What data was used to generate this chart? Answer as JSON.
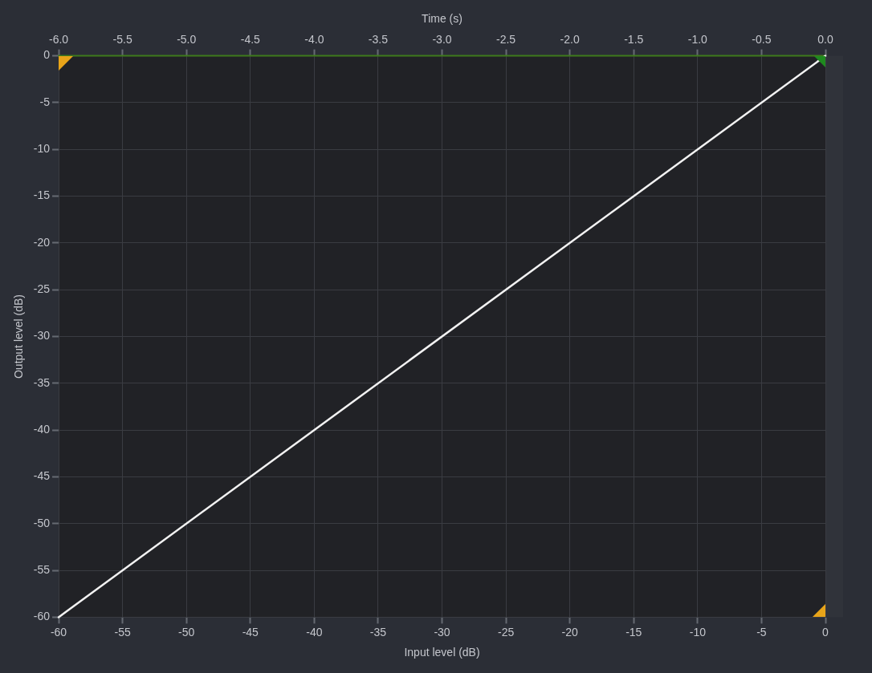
{
  "chart_data": {
    "type": "line",
    "xlabel": "Input level (dB)",
    "ylabel": "Output level (dB)",
    "x2label": "Time (s)",
    "xlim": [
      -60,
      0
    ],
    "xticks": [
      -60,
      -55,
      -50,
      -45,
      -40,
      -35,
      -30,
      -25,
      -20,
      -15,
      -10,
      -5,
      0
    ],
    "x2lim": [
      -6,
      0
    ],
    "x2ticks": [
      {
        "value": -6,
        "label": "-6.0"
      },
      {
        "value": -5.5,
        "label": "-5.5"
      },
      {
        "value": -5,
        "label": "-5.0"
      },
      {
        "value": -4.5,
        "label": "-4.5"
      },
      {
        "value": -4,
        "label": "-4.0"
      },
      {
        "value": -3.5,
        "label": "-3.5"
      },
      {
        "value": -3,
        "label": "-3.0"
      },
      {
        "value": -2.5,
        "label": "-2.5"
      },
      {
        "value": -2,
        "label": "-2.0"
      },
      {
        "value": -1.5,
        "label": "-1.5"
      },
      {
        "value": -1,
        "label": "-1.0"
      },
      {
        "value": -0.5,
        "label": "-0.5"
      },
      {
        "value": 0,
        "label": "0.0"
      }
    ],
    "ylim": [
      -60,
      0
    ],
    "yticks": [
      -60,
      -55,
      -50,
      -45,
      -40,
      -35,
      -30,
      -25,
      -20,
      -15,
      -10,
      -5,
      0
    ],
    "grid": true,
    "legend": false,
    "marker": "none",
    "line_style": "solid",
    "series": [
      {
        "color": "#f2f2f2",
        "x": [
          -60,
          0
        ],
        "values": [
          -60,
          0
        ]
      },
      {
        "color": "#3f7a1c",
        "axis": "x2",
        "x": [
          -6,
          0
        ],
        "values": [
          0,
          0
        ]
      }
    ]
  }
}
